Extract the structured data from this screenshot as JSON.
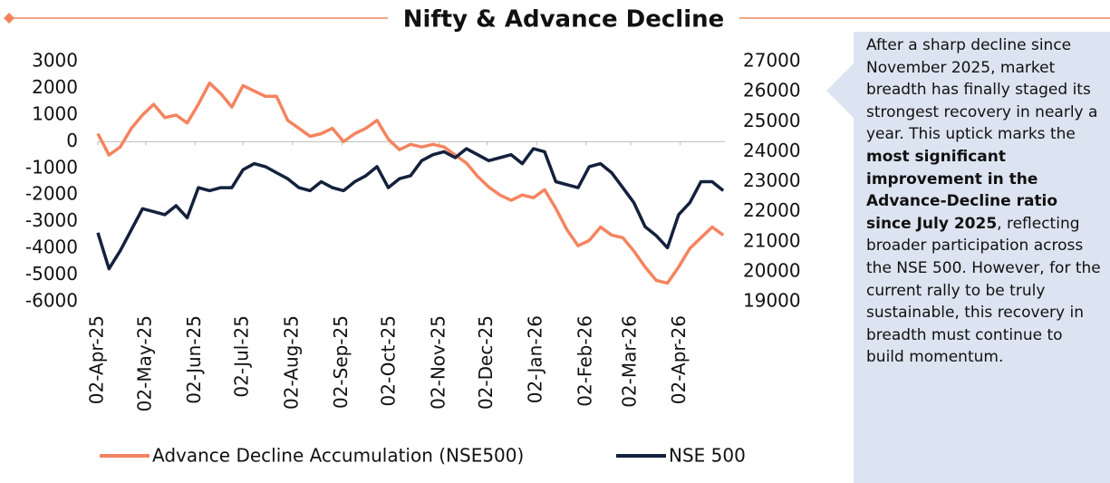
{
  "chart_data": {
    "type": "line",
    "title": "Nifty & Advance Decline",
    "x": [
      "2025-04-02",
      "2025-04-09",
      "2025-04-16",
      "2025-04-23",
      "2025-04-30",
      "2025-05-07",
      "2025-05-14",
      "2025-05-21",
      "2025-05-28",
      "2025-06-04",
      "2025-06-11",
      "2025-06-18",
      "2025-06-25",
      "2025-07-02",
      "2025-07-09",
      "2025-07-16",
      "2025-07-23",
      "2025-07-30",
      "2025-08-06",
      "2025-08-13",
      "2025-08-20",
      "2025-08-27",
      "2025-09-03",
      "2025-09-10",
      "2025-09-17",
      "2025-09-24",
      "2025-10-01",
      "2025-10-08",
      "2025-10-15",
      "2025-10-22",
      "2025-10-29",
      "2025-11-05",
      "2025-11-12",
      "2025-11-19",
      "2025-11-26",
      "2025-12-03",
      "2025-12-10",
      "2025-12-17",
      "2025-12-24",
      "2025-12-31",
      "2026-01-07",
      "2026-01-14",
      "2026-01-21",
      "2026-01-28",
      "2026-02-04",
      "2026-02-11",
      "2026-02-18",
      "2026-02-25",
      "2026-03-04",
      "2026-03-11",
      "2026-03-18",
      "2026-03-25",
      "2026-04-01",
      "2026-04-08",
      "2026-04-15",
      "2026-04-22",
      "2026-04-29"
    ],
    "xlim": [
      "2025-04-02",
      "2026-04-30"
    ],
    "xticks": [
      {
        "value": "2025-04-02",
        "label": "02-Apr-25"
      },
      {
        "value": "2025-05-02",
        "label": "02-May-25"
      },
      {
        "value": "2025-06-02",
        "label": "02-Jun-25"
      },
      {
        "value": "2025-07-02",
        "label": "02-Jul-25"
      },
      {
        "value": "2025-08-02",
        "label": "02-Aug-25"
      },
      {
        "value": "2025-09-02",
        "label": "02-Sep-25"
      },
      {
        "value": "2025-10-02",
        "label": "02-Oct-25"
      },
      {
        "value": "2025-11-02",
        "label": "02-Nov-25"
      },
      {
        "value": "2025-12-02",
        "label": "02-Dec-25"
      },
      {
        "value": "2026-01-02",
        "label": "02-Jan-26"
      },
      {
        "value": "2026-02-02",
        "label": "02-Feb-26"
      },
      {
        "value": "2026-03-02",
        "label": "02-Mar-26"
      },
      {
        "value": "2026-04-02",
        "label": "02-Apr-26"
      }
    ],
    "ylim": [
      -6000,
      3000
    ],
    "yticks": [
      3000,
      2000,
      1000,
      0,
      -1000,
      -2000,
      -3000,
      -4000,
      -5000,
      -6000
    ],
    "y2lim": [
      19000,
      27000
    ],
    "y2ticks": [
      27000,
      26000,
      25000,
      24000,
      23000,
      22000,
      21000,
      20000,
      19000
    ],
    "grid": false,
    "legend": "bottom",
    "series": [
      {
        "name": "Advance Decline Accumulation (NSE500)",
        "color": "#f4845f",
        "axis": "y",
        "values": [
          300,
          -500,
          -200,
          500,
          1000,
          1400,
          900,
          1000,
          700,
          1400,
          2200,
          1800,
          1300,
          2100,
          1900,
          1700,
          1700,
          800,
          500,
          200,
          300,
          500,
          0,
          300,
          500,
          800,
          100,
          -300,
          -100,
          -200,
          -100,
          -200,
          -500,
          -800,
          -1300,
          -1700,
          -2000,
          -2200,
          -2000,
          -2100,
          -1800,
          -2500,
          -3300,
          -3900,
          -3700,
          -3200,
          -3500,
          -3600,
          -4100,
          -4700,
          -5200,
          -5300,
          -4700,
          -4000,
          -3600,
          -3200,
          -3500
        ]
      },
      {
        "name": "NSE 500",
        "color": "#14213d",
        "axis": "y2",
        "values": [
          21300,
          20100,
          20700,
          21400,
          22100,
          22000,
          21900,
          22200,
          21800,
          22800,
          22700,
          22800,
          22800,
          23400,
          23600,
          23500,
          23300,
          23100,
          22800,
          22700,
          23000,
          22800,
          22700,
          23000,
          23200,
          23500,
          22800,
          23100,
          23200,
          23700,
          23900,
          24000,
          23800,
          24100,
          23900,
          23700,
          23800,
          23900,
          23600,
          24100,
          24000,
          23000,
          22900,
          22800,
          23500,
          23600,
          23300,
          22800,
          22300,
          21500,
          21200,
          20800,
          21900,
          22300,
          23000,
          23000,
          22700
        ]
      }
    ]
  },
  "commentary": {
    "parts": [
      {
        "text": "After a sharp decline since November 2025, market breadth has finally staged its strongest recovery in nearly a year. This uptick marks the ",
        "bold": false
      },
      {
        "text": "most significant improvement in the Advance-Decline ratio since July 2025",
        "bold": true
      },
      {
        "text": ", reflecting broader participation across the NSE 500. However, for the current rally to be truly sustainable, this recovery in breadth must continue to build momentum.",
        "bold": false
      }
    ]
  }
}
